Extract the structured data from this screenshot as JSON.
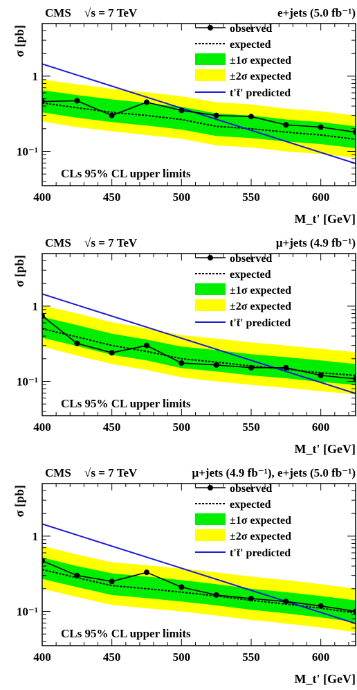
{
  "colors": {
    "band_1sigma": "#00ee00",
    "band_2sigma": "#ffff00",
    "predicted": "#1a1ad6",
    "observed": "#000000"
  },
  "chart_data": [
    {
      "type": "line",
      "log_y": true,
      "header": {
        "experiment": "CMS",
        "energy_label": "√s = 7 TeV",
        "channel": "e+jets (5.0 fb⁻¹)"
      },
      "xlabel": "M_t' [GeV]",
      "ylabel": "σ [pb]",
      "xlim": [
        400,
        625
      ],
      "ylim": [
        0.035,
        5
      ],
      "x_ticks": [
        400,
        450,
        500,
        550,
        600
      ],
      "y_ticks": [
        {
          "v": 1,
          "label": "1"
        },
        {
          "v": 0.1,
          "label": "10⁻¹"
        }
      ],
      "annotation": "CLs 95% CL upper limits",
      "legend": {
        "observed": "observed",
        "expected": "expected",
        "band1": "±1σ expected",
        "band2": "±2σ expected",
        "predicted": "t't̄' predicted"
      },
      "mass": [
        400,
        425,
        450,
        475,
        500,
        525,
        550,
        575,
        600,
        625
      ],
      "observed": [
        0.46,
        0.47,
        0.3,
        0.45,
        0.35,
        0.3,
        0.29,
        0.225,
        0.21,
        0.18
      ],
      "expected": [
        0.44,
        0.38,
        0.33,
        0.3,
        0.265,
        0.215,
        0.2,
        0.18,
        0.165,
        0.145
      ],
      "band1_lo": [
        0.33,
        0.28,
        0.245,
        0.22,
        0.195,
        0.16,
        0.15,
        0.135,
        0.125,
        0.11
      ],
      "band1_hi": [
        0.65,
        0.56,
        0.49,
        0.44,
        0.39,
        0.32,
        0.3,
        0.265,
        0.245,
        0.215
      ],
      "band2_lo": [
        0.25,
        0.21,
        0.185,
        0.165,
        0.147,
        0.12,
        0.113,
        0.1,
        0.092,
        0.082
      ],
      "band2_hi": [
        0.9,
        0.78,
        0.68,
        0.61,
        0.54,
        0.45,
        0.42,
        0.37,
        0.34,
        0.3
      ],
      "predicted_x": [
        400,
        625
      ],
      "predicted_y": [
        1.45,
        0.069
      ]
    },
    {
      "type": "line",
      "log_y": true,
      "header": {
        "experiment": "CMS",
        "energy_label": "√s = 7 TeV",
        "channel": "μ+jets (4.9 fb⁻¹)"
      },
      "xlabel": "M_t' [GeV]",
      "ylabel": "σ [pb]",
      "xlim": [
        400,
        625
      ],
      "ylim": [
        0.035,
        5
      ],
      "x_ticks": [
        400,
        450,
        500,
        550,
        600
      ],
      "y_ticks": [
        {
          "v": 1,
          "label": "1"
        },
        {
          "v": 0.1,
          "label": "10⁻¹"
        }
      ],
      "annotation": "CLs 95% CL upper limits",
      "legend": {
        "observed": "observed",
        "expected": "expected",
        "band1": "±1σ expected",
        "band2": "±2σ expected",
        "predicted": "t't̄' predicted"
      },
      "mass": [
        400,
        425,
        450,
        475,
        500,
        525,
        550,
        575,
        600,
        625
      ],
      "observed": [
        0.74,
        0.32,
        0.24,
        0.3,
        0.175,
        0.165,
        0.152,
        0.152,
        0.12,
        0.108
      ],
      "expected": [
        0.5,
        0.39,
        0.3,
        0.25,
        0.2,
        0.18,
        0.16,
        0.145,
        0.13,
        0.12
      ],
      "band1_lo": [
        0.38,
        0.295,
        0.225,
        0.19,
        0.15,
        0.135,
        0.12,
        0.11,
        0.098,
        0.09
      ],
      "band1_hi": [
        0.72,
        0.56,
        0.43,
        0.36,
        0.29,
        0.26,
        0.23,
        0.21,
        0.19,
        0.17
      ],
      "band2_lo": [
        0.29,
        0.22,
        0.17,
        0.142,
        0.113,
        0.1,
        0.09,
        0.082,
        0.074,
        0.067
      ],
      "band2_hi": [
        1.02,
        0.8,
        0.61,
        0.51,
        0.41,
        0.37,
        0.33,
        0.3,
        0.27,
        0.245
      ],
      "predicted_x": [
        400,
        625
      ],
      "predicted_y": [
        1.45,
        0.069
      ]
    },
    {
      "type": "line",
      "log_y": true,
      "header": {
        "experiment": "CMS",
        "energy_label": "√s = 7 TeV",
        "channel": "μ+jets (4.9 fb⁻¹), e+jets (5.0 fb⁻¹)"
      },
      "xlabel": "M_t' [GeV]",
      "ylabel": "σ [pb]",
      "xlim": [
        400,
        625
      ],
      "ylim": [
        0.035,
        5
      ],
      "x_ticks": [
        400,
        450,
        500,
        550,
        600
      ],
      "y_ticks": [
        {
          "v": 1,
          "label": "1"
        },
        {
          "v": 0.1,
          "label": "10⁻¹"
        }
      ],
      "annotation": "CLs 95% CL upper limits",
      "legend": {
        "observed": "observed",
        "expected": "expected",
        "band1": "±1σ expected",
        "band2": "±2σ expected",
        "predicted": "t't̄' predicted"
      },
      "mass": [
        400,
        425,
        450,
        475,
        500,
        525,
        550,
        575,
        600,
        625
      ],
      "observed": [
        0.47,
        0.3,
        0.25,
        0.33,
        0.21,
        0.165,
        0.148,
        0.135,
        0.118,
        0.1
      ],
      "expected": [
        0.36,
        0.28,
        0.22,
        0.2,
        0.18,
        0.16,
        0.14,
        0.125,
        0.11,
        0.095
      ],
      "band1_lo": [
        0.27,
        0.21,
        0.165,
        0.15,
        0.135,
        0.12,
        0.105,
        0.094,
        0.083,
        0.072
      ],
      "band1_hi": [
        0.52,
        0.4,
        0.32,
        0.29,
        0.26,
        0.23,
        0.2,
        0.18,
        0.16,
        0.14
      ],
      "band2_lo": [
        0.2,
        0.155,
        0.122,
        0.11,
        0.1,
        0.088,
        0.077,
        0.069,
        0.061,
        0.053
      ],
      "band2_hi": [
        0.74,
        0.57,
        0.45,
        0.41,
        0.37,
        0.33,
        0.29,
        0.26,
        0.23,
        0.2
      ],
      "predicted_x": [
        400,
        625
      ],
      "predicted_y": [
        1.45,
        0.069
      ]
    }
  ]
}
